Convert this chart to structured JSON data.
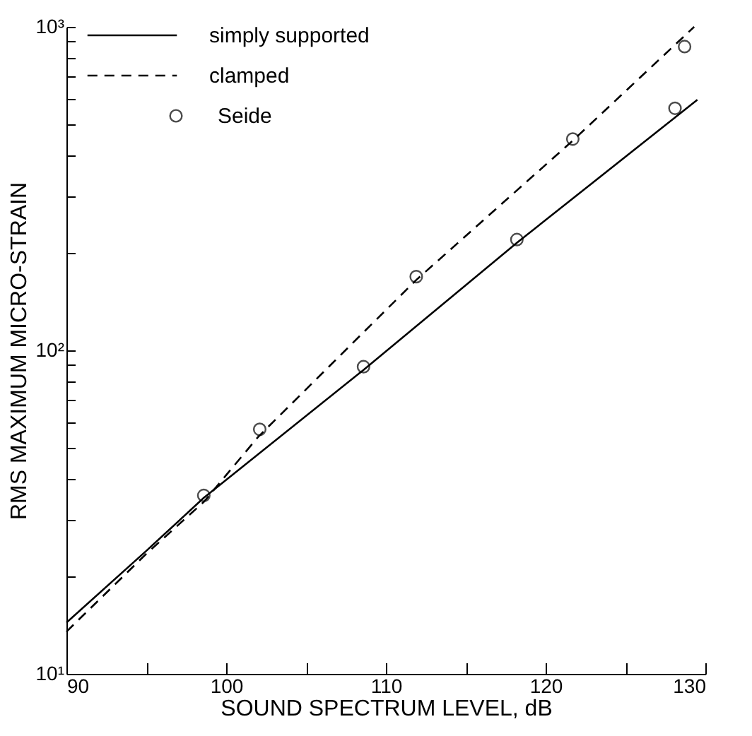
{
  "chart_data": {
    "type": "line",
    "xlabel": "SOUND SPECTRUM LEVEL, dB",
    "ylabel": "RMS MAXIMUM MICRO-STRAIN",
    "log": "y",
    "legend": "top left",
    "xlim": [
      90,
      130
    ],
    "xticks": [
      90,
      {
        "value": 95,
        "label": null
      },
      100,
      {
        "value": 105,
        "label": null
      },
      110,
      {
        "value": 115,
        "label": null
      },
      120,
      {
        "value": 125,
        "label": null
      },
      130
    ],
    "ylim": [
      10,
      1000
    ],
    "yticks": [
      {
        "value": 10,
        "label": "10¹"
      },
      {
        "value": 20,
        "label": null
      },
      {
        "value": 30,
        "label": null
      },
      {
        "value": 40,
        "label": null
      },
      {
        "value": 50,
        "label": null
      },
      {
        "value": 60,
        "label": null
      },
      {
        "value": 70,
        "label": null
      },
      {
        "value": 80,
        "label": null
      },
      {
        "value": 90,
        "label": null
      },
      {
        "value": 100,
        "label": "10²"
      },
      {
        "value": 200,
        "label": null
      },
      {
        "value": 300,
        "label": null
      },
      {
        "value": 400,
        "label": null
      },
      {
        "value": 500,
        "label": null
      },
      {
        "value": 600,
        "label": null
      },
      {
        "value": 700,
        "label": null
      },
      {
        "value": 800,
        "label": null
      },
      {
        "value": 900,
        "label": null
      },
      {
        "value": 1000,
        "label": "10³"
      }
    ],
    "series": [
      {
        "name": "simply supported",
        "line_style": "solid",
        "color": "#000000",
        "x": [
          90,
          95,
          98.6,
          108.6,
          118.2,
          129.5
        ],
        "values": [
          14.4,
          24,
          35,
          87,
          215,
          595
        ]
      },
      {
        "name": "clamped",
        "line_style": "dashed",
        "color": "#000000",
        "x": [
          90,
          95,
          98.6,
          102,
          111.9,
          121.7,
          129.3
        ],
        "values": [
          13.5,
          23.5,
          34,
          54,
          165,
          445,
          1000
        ]
      },
      {
        "name": "Seide",
        "type": "scatter",
        "marker": "circle",
        "color": "#000000",
        "x": [
          98.6,
          102.1,
          108.6,
          111.9,
          118.2,
          121.7,
          128.1,
          128.7
        ],
        "values": [
          35.6,
          57,
          89,
          169,
          220,
          450,
          560,
          869
        ]
      }
    ]
  }
}
